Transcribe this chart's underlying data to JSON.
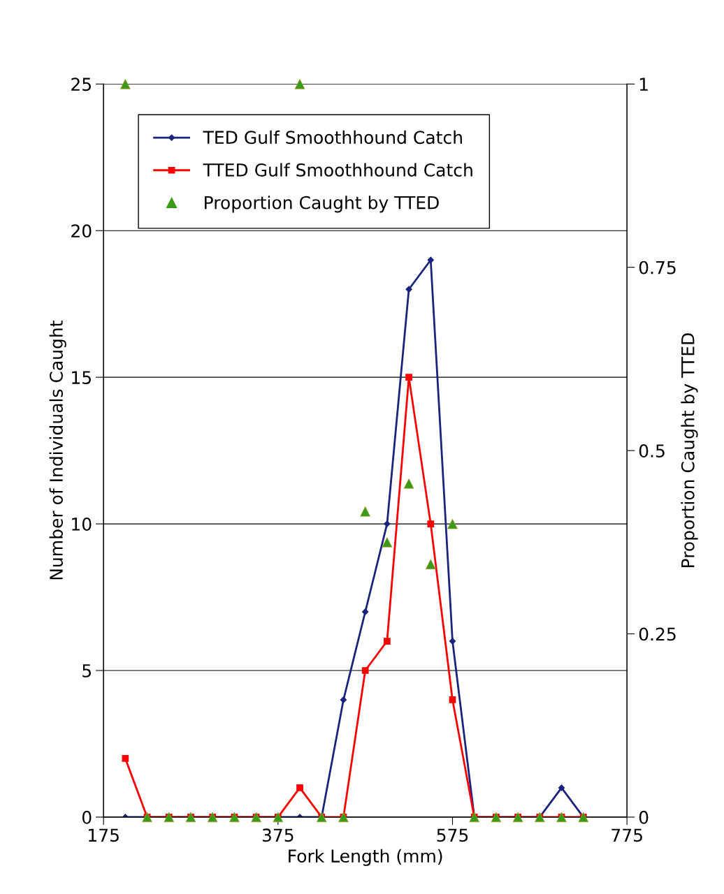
{
  "chart_data": {
    "type": "line",
    "xlabel": "Fork Length (mm)",
    "ylabel": "Number of Individuals Caught",
    "y2label": "Proportion Caught by TTED",
    "x": [
      200,
      225,
      250,
      275,
      300,
      325,
      350,
      375,
      400,
      425,
      450,
      475,
      500,
      525,
      550,
      575,
      600,
      625,
      650,
      675,
      700,
      725
    ],
    "series": [
      {
        "name": "TED Gulf Smoothhound Catch",
        "color": "#1a237e",
        "marker": "diamond",
        "values": [
          0,
          0,
          0,
          0,
          0,
          0,
          0,
          0,
          0,
          0,
          4,
          7,
          10,
          18,
          19,
          6,
          0,
          0,
          0,
          0,
          1,
          0
        ]
      },
      {
        "name": "TTED Gulf Smoothhound Catch",
        "color": "#ff0000",
        "marker": "square",
        "values": [
          2,
          0,
          0,
          0,
          0,
          0,
          0,
          0,
          1,
          0,
          0,
          5,
          6,
          15,
          10,
          4,
          0,
          0,
          0,
          0,
          0,
          0
        ]
      },
      {
        "name": "Proportion Caught by TTED",
        "type": "scatter",
        "axis": "y2",
        "color": "#3a9a1a",
        "marker": "triangle",
        "values": [
          1,
          0,
          0,
          0,
          0,
          0,
          0,
          0,
          1,
          0,
          0,
          0.417,
          0.375,
          0.455,
          0.345,
          0.4,
          0,
          0,
          0,
          0,
          0,
          0
        ]
      }
    ],
    "xlim": [
      175,
      775
    ],
    "xticks": [
      175,
      375,
      575,
      775
    ],
    "ylim": [
      0,
      25
    ],
    "yticks": [
      0,
      5,
      10,
      15,
      20,
      25
    ],
    "y2lim": [
      0,
      1
    ],
    "y2ticks": [
      0,
      0.25,
      0.5,
      0.75,
      1
    ],
    "grid": "y",
    "legend": "top left"
  }
}
